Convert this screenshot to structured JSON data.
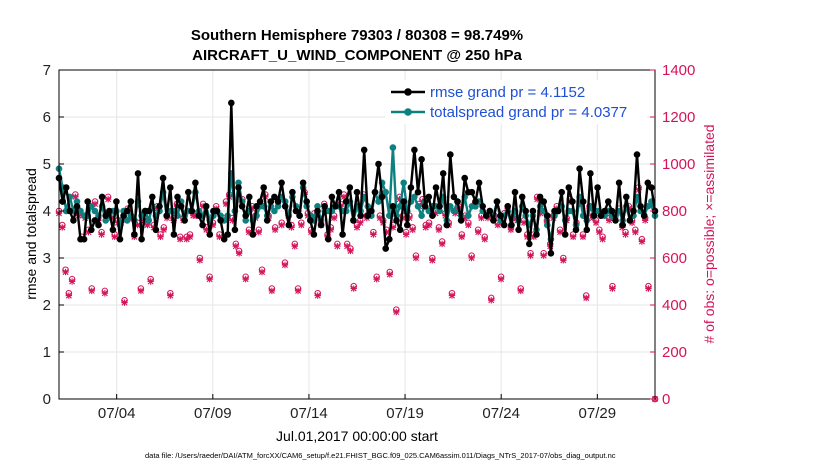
{
  "chart_data": {
    "type": "line",
    "title_line1": "Southern Hemisphere 79303 / 80308 = 98.749%",
    "title_line2": "AIRCRAFT_U_WIND_COMPONENT @ 250 hPa",
    "xlabel": "Jul.01,2017 00:00:00 start",
    "ylabel_left": "rmse and totalspread",
    "ylabel_right": "# of obs: o=possible; ×=assimilated",
    "ylim_left": [
      0,
      7
    ],
    "ylim_right": [
      0,
      1400
    ],
    "xlim_days": [
      1.0,
      32.0
    ],
    "yticks_left": [
      "0",
      "1",
      "2",
      "3",
      "4",
      "5",
      "6",
      "7"
    ],
    "yticks_right": [
      "0",
      "200",
      "400",
      "600",
      "800",
      "1000",
      "1200",
      "1400"
    ],
    "xticks": [
      {
        "day": 4,
        "label": "07/04"
      },
      {
        "day": 9,
        "label": "07/09"
      },
      {
        "day": 14,
        "label": "07/14"
      },
      {
        "day": 19,
        "label": "07/19"
      },
      {
        "day": 24,
        "label": "07/24"
      },
      {
        "day": 29,
        "label": "07/29"
      }
    ],
    "grid": true,
    "legend_position": "top-right",
    "colors": {
      "rmse": "#000000",
      "spread": "#0f8080",
      "obs": "#d4145a",
      "right_axis": "#d4145a",
      "legend_text": "#1f4fd6"
    },
    "series": [
      {
        "name": "rmse grand pr = 4.1152",
        "color": "#000000",
        "values": [
          4.7,
          4.2,
          4.5,
          4.0,
          3.8,
          4.1,
          3.4,
          3.4,
          4.2,
          3.6,
          3.8,
          3.7,
          4.3,
          3.9,
          4.0,
          3.6,
          4.2,
          3.4,
          3.9,
          4.0,
          4.2,
          3.5,
          4.8,
          3.4,
          4.0,
          4.0,
          4.3,
          3.6,
          4.1,
          4.7,
          3.9,
          4.5,
          3.5,
          4.3,
          4.1,
          3.8,
          4.4,
          4.0,
          4.6,
          3.9,
          3.7,
          4.1,
          3.5,
          4.0,
          4.0,
          3.8,
          3.4,
          3.5,
          6.3,
          3.6,
          4.5,
          4.1,
          3.9,
          4.3,
          3.5,
          4.1,
          4.2,
          4.5,
          3.8,
          4.2,
          4.3,
          4.2,
          4.6,
          4.1,
          3.7,
          4.4,
          4.0,
          3.9,
          4.6,
          4.2,
          3.8,
          3.5,
          4.0,
          3.7,
          4.1,
          3.4,
          4.3,
          4.1,
          4.4,
          3.5,
          4.2,
          4.5,
          3.8,
          4.4,
          3.9,
          5.3,
          3.9,
          4.0,
          4.4,
          5.0,
          4.3,
          3.2,
          3.4,
          4.1,
          3.8,
          3.6,
          4.2,
          3.7,
          4.5,
          5.3,
          4.4,
          5.1,
          4.1,
          4.3,
          3.9,
          4.5,
          4.1,
          4.8,
          3.7,
          5.2,
          4.3,
          4.2,
          3.8,
          4.7,
          4.4,
          4.4,
          4.2,
          4.6,
          4.1,
          3.9,
          4.0,
          3.8,
          4.2,
          3.9,
          3.7,
          4.1,
          3.7,
          4.4,
          3.6,
          4.3,
          4.0,
          3.3,
          4.0,
          3.5,
          4.3,
          4.2,
          3.9,
          3.1,
          4.0,
          4.0,
          4.4,
          3.5,
          4.5,
          4.2,
          3.6,
          4.9,
          4.2,
          3.6,
          4.8,
          3.9,
          4.5,
          3.9,
          4.0,
          4.2,
          4.0,
          3.8,
          4.6,
          3.7,
          4.3,
          3.8,
          4.0,
          5.2,
          4.1,
          3.9,
          4.6,
          4.5,
          4.0
        ]
      },
      {
        "name": "totalspread grand pr = 4.0377",
        "color": "#0f8080",
        "values": [
          4.9,
          4.5,
          4.0,
          4.3,
          4.0,
          4.2,
          4.0,
          3.9,
          3.9,
          4.1,
          4.0,
          3.9,
          4.1,
          3.8,
          3.9,
          4.0,
          4.0,
          3.7,
          4.0,
          3.8,
          3.9,
          3.8,
          4.2,
          3.9,
          4.0,
          3.8,
          4.1,
          3.9,
          4.0,
          4.4,
          3.9,
          4.0,
          4.0,
          3.9,
          4.2,
          3.9,
          4.0,
          4.0,
          4.4,
          4.0,
          3.9,
          4.1,
          3.8,
          3.9,
          4.0,
          3.9,
          3.8,
          3.9,
          4.8,
          4.0,
          4.6,
          4.2,
          3.8,
          4.0,
          3.8,
          3.9,
          4.1,
          4.1,
          3.9,
          4.1,
          4.0,
          4.1,
          4.3,
          4.2,
          3.9,
          4.3,
          4.1,
          3.9,
          4.5,
          4.1,
          3.9,
          3.8,
          4.1,
          3.8,
          4.0,
          4.0,
          4.0,
          4.1,
          4.1,
          4.0,
          4.0,
          4.2,
          3.8,
          4.1,
          4.0,
          4.3,
          4.1,
          3.9,
          4.4,
          4.2,
          4.6,
          4.4,
          3.9,
          5.35,
          3.9,
          4.1,
          4.6,
          4.0,
          4.2,
          4.3,
          4.1,
          3.9,
          4.2,
          4.0,
          4.1,
          4.1,
          4.0,
          4.3,
          3.8,
          4.1,
          4.0,
          4.2,
          3.9,
          4.3,
          3.9,
          4.1,
          4.1,
          4.2,
          4.0,
          3.9,
          4.0,
          3.9,
          4.2,
          3.8,
          3.9,
          4.0,
          3.7,
          4.0,
          3.8,
          4.1,
          3.9,
          3.7,
          3.9,
          3.6,
          4.1,
          4.0,
          3.7,
          3.4,
          3.9,
          4.0,
          4.1,
          3.8,
          4.0,
          4.0,
          3.7,
          4.3,
          3.9,
          3.8,
          4.1,
          3.9,
          4.0,
          3.9,
          3.9,
          4.0,
          3.9,
          3.9,
          4.0,
          3.8,
          4.1,
          3.8,
          3.9,
          4.3,
          4.0,
          3.9,
          4.1,
          4.2,
          3.9
        ]
      }
    ],
    "obs_possible": [
      800,
      740,
      550,
      450,
      510,
      870,
      790,
      690,
      780,
      720,
      470,
      840,
      770,
      710,
      460,
      860,
      780,
      700,
      760,
      760,
      420,
      810,
      780,
      700,
      750,
      470,
      770,
      750,
      510,
      740,
      820,
      700,
      730,
      780,
      450,
      770,
      830,
      690,
      770,
      690,
      700,
      790,
      790,
      600,
      830,
      730,
      520,
      750,
      820,
      700,
      770,
      840,
      870,
      770,
      660,
      630,
      850,
      520,
      720,
      820,
      780,
      720,
      550,
      870,
      780,
      470,
      730,
      850,
      750,
      580,
      790,
      740,
      660,
      470,
      750,
      880,
      790,
      720,
      790,
      450,
      750,
      830,
      700,
      730,
      780,
      660,
      830,
      870,
      660,
      640,
      480,
      740,
      760,
      870,
      780,
      800,
      710,
      520,
      780,
      760,
      720,
      540,
      740,
      380,
      860,
      780,
      710,
      780,
      730,
      610,
      830,
      850,
      740,
      750,
      600,
      800,
      730,
      670,
      790,
      750,
      450,
      800,
      820,
      700,
      780,
      750,
      610,
      830,
      720,
      780,
      690,
      780,
      430,
      780,
      750,
      520,
      790,
      820,
      730,
      780,
      770,
      470,
      760,
      700,
      620,
      700,
      860,
      800,
      620,
      760,
      660,
      780,
      820,
      720,
      600,
      770,
      850,
      700,
      750,
      840,
      700,
      440,
      820,
      780,
      760,
      720,
      690,
      800,
      770,
      480,
      790,
      810,
      740,
      710,
      820,
      760,
      720,
      900,
      680,
      770,
      480,
      830,
      0
    ],
    "obs_assimilated": [
      790,
      730,
      540,
      440,
      500,
      860,
      780,
      680,
      770,
      710,
      460,
      830,
      760,
      700,
      450,
      850,
      770,
      690,
      750,
      750,
      410,
      800,
      770,
      690,
      740,
      460,
      760,
      740,
      500,
      730,
      810,
      690,
      720,
      770,
      440,
      760,
      820,
      680,
      760,
      680,
      690,
      780,
      780,
      590,
      820,
      720,
      510,
      740,
      810,
      690,
      760,
      830,
      860,
      760,
      650,
      620,
      840,
      510,
      710,
      810,
      770,
      710,
      540,
      860,
      770,
      460,
      720,
      840,
      740,
      570,
      780,
      730,
      650,
      460,
      740,
      870,
      780,
      710,
      780,
      440,
      740,
      820,
      690,
      720,
      770,
      650,
      820,
      860,
      650,
      630,
      470,
      730,
      750,
      860,
      770,
      790,
      700,
      510,
      770,
      750,
      710,
      530,
      730,
      370,
      850,
      770,
      700,
      770,
      720,
      600,
      820,
      840,
      730,
      740,
      590,
      790,
      720,
      660,
      780,
      740,
      440,
      790,
      810,
      690,
      770,
      740,
      600,
      820,
      710,
      770,
      680,
      770,
      420,
      770,
      740,
      510,
      780,
      810,
      720,
      770,
      760,
      460,
      750,
      690,
      610,
      690,
      850,
      790,
      610,
      750,
      650,
      770,
      810,
      710,
      590,
      760,
      840,
      690,
      740,
      830,
      690,
      430,
      810,
      770,
      750,
      710,
      680,
      790,
      760,
      470,
      780,
      800,
      730,
      700,
      810,
      750,
      710,
      890,
      670,
      760,
      470,
      820,
      0
    ]
  },
  "footnote": "data file: /Users/raeder/DAI/ATM_forcXX/CAM6_setup/f.e21.FHIST_BGC.f09_025.CAM6assim.011/Diags_NTrS_2017-07/obs_diag_output.nc"
}
